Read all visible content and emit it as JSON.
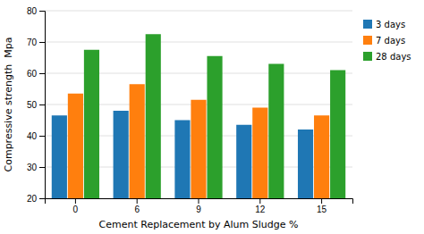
{
  "chart_data": {
    "type": "bar",
    "xlabel": "Cement Replacement by Alum Sludge %",
    "ylabel": "Compressive strength  Mpa",
    "categories": [
      "0",
      "6",
      "9",
      "12",
      "15"
    ],
    "series": [
      {
        "name": "3 days",
        "values": [
          46.5,
          48,
          45,
          43.5,
          42
        ]
      },
      {
        "name": "7 days",
        "values": [
          53.5,
          56.5,
          51.5,
          49,
          46.5
        ]
      },
      {
        "name": "28 days",
        "values": [
          67.5,
          72.5,
          65.5,
          63,
          61
        ]
      }
    ],
    "ylim": [
      20,
      80
    ],
    "yticks": [
      20,
      30,
      40,
      50,
      60,
      70,
      80
    ],
    "grid": true,
    "legend": "right"
  }
}
